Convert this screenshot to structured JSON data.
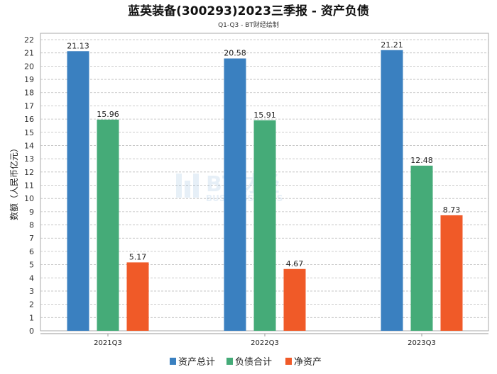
{
  "chart_data": {
    "type": "bar",
    "title": "蓝英装备(300293)2023三季报 - 资产负债",
    "subtitle": "Q1-Q3 - BT财经绘制",
    "xlabel": "",
    "ylabel": "数额（人民币亿元）",
    "ylim": [
      0,
      22
    ],
    "yticks": [
      0,
      1,
      2,
      3,
      4,
      5,
      6,
      7,
      8,
      9,
      10,
      11,
      12,
      13,
      14,
      15,
      16,
      17,
      18,
      19,
      20,
      21,
      22
    ],
    "grid": true,
    "legend_position": "bottom-center",
    "categories": [
      "2021Q3",
      "2022Q3",
      "2023Q3"
    ],
    "series": [
      {
        "name": "资产总计",
        "color": "#3a80c0",
        "values": [
          21.13,
          20.58,
          21.21
        ],
        "labels": [
          "21.13",
          "20.58",
          "21.21"
        ]
      },
      {
        "name": "负债合计",
        "color": "#45ab78",
        "values": [
          15.96,
          15.91,
          12.48
        ],
        "labels": [
          "15.96",
          "15.91",
          "12.48"
        ]
      },
      {
        "name": "净资产",
        "color": "#f05a28",
        "values": [
          5.17,
          4.67,
          8.73
        ],
        "labels": [
          "5.17",
          "4.67",
          "8.73"
        ]
      }
    ],
    "watermark": "BT财经 BUSINESSTIMES"
  }
}
